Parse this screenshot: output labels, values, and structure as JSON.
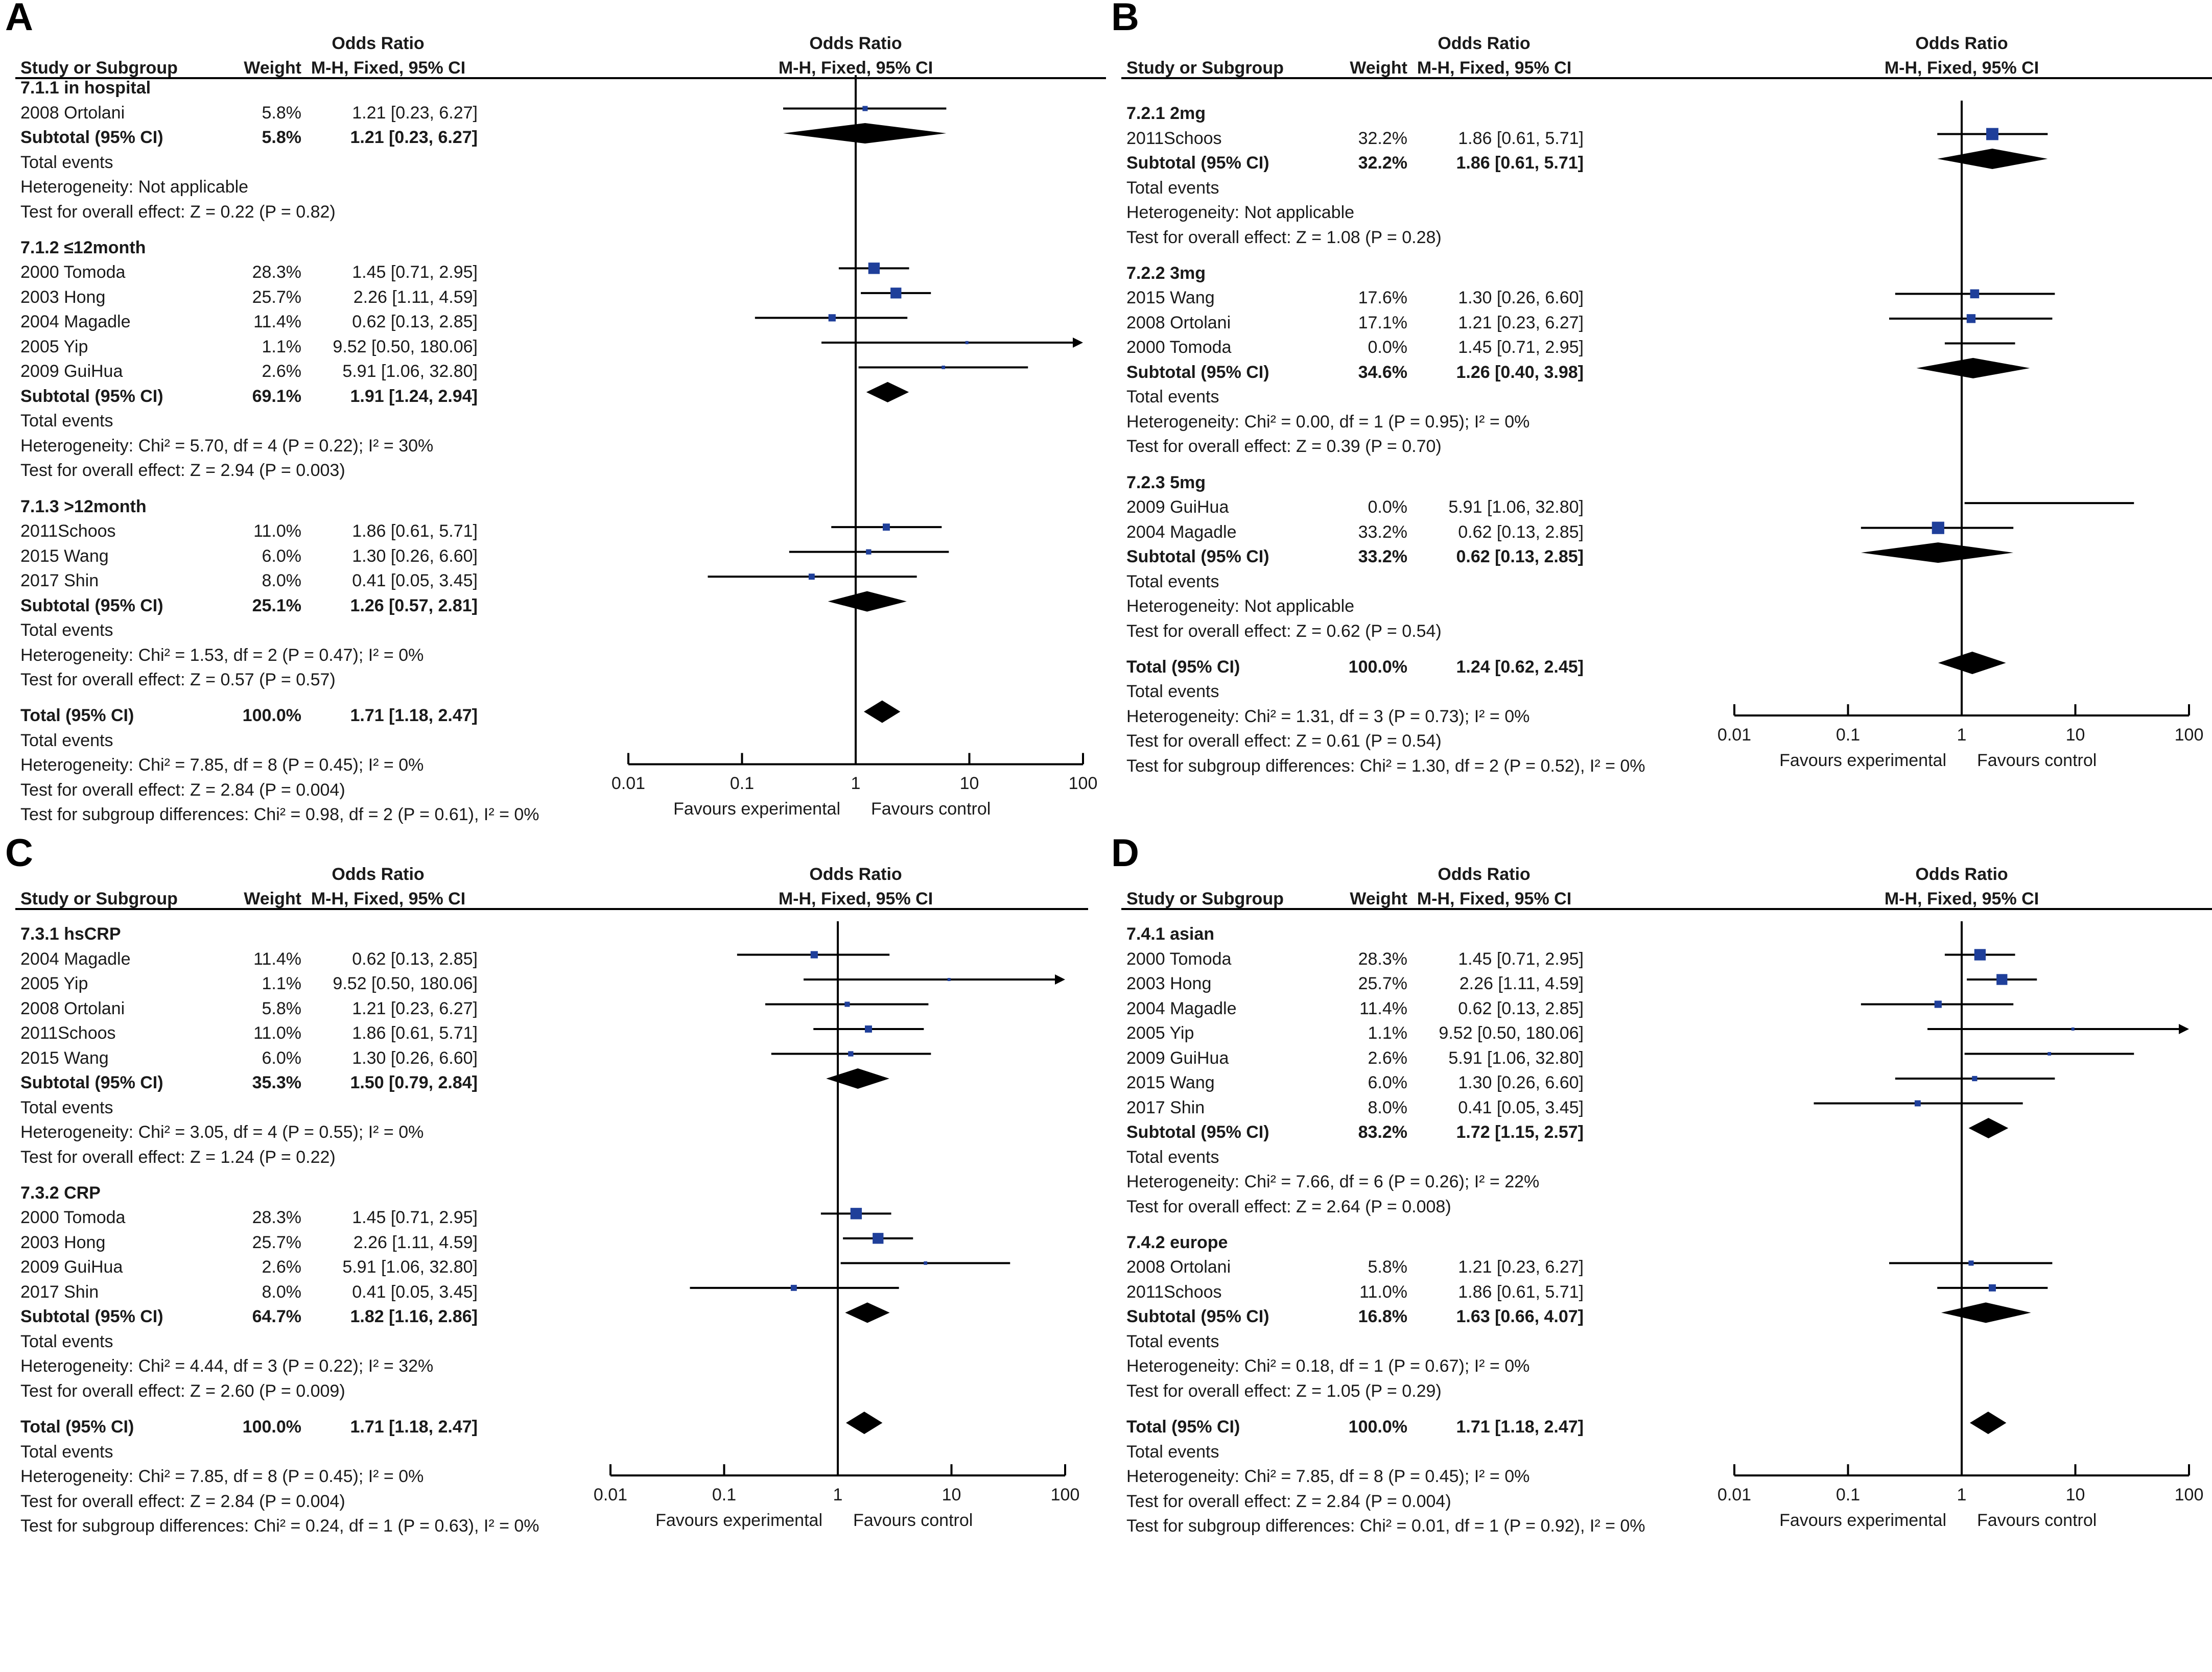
{
  "header": {
    "study_label": "Study or Subgroup",
    "weight_label": "Weight",
    "or_title": "Odds Ratio",
    "or_method": "M-H, Fixed, 95% CI",
    "plot_title": "Odds Ratio",
    "plot_method": "M-H, Fixed, 95% CI"
  },
  "axis": {
    "ticks": [
      "0.01",
      "0.1",
      "1",
      "10",
      "100"
    ],
    "favours_left": "Favours experimental",
    "favours_right": "Favours control"
  },
  "chart_data": [
    {
      "panel": "A",
      "type": "forest",
      "x_scale": "log",
      "xlim": [
        0.01,
        100
      ],
      "rows": [
        {
          "kind": "group",
          "label": "7.1.1 in hospital"
        },
        {
          "kind": "study",
          "label": "2008 Ortolani",
          "weight": "5.8%",
          "ci_text": "1.21 [0.23, 6.27]",
          "or": 1.21,
          "lo": 0.23,
          "hi": 6.27
        },
        {
          "kind": "subtotal",
          "label": "Subtotal (95% CI)",
          "weight": "5.8%",
          "ci_text": "1.21 [0.23, 6.27]",
          "or": 1.21,
          "lo": 0.23,
          "hi": 6.27
        },
        {
          "kind": "text",
          "label": "Total events"
        },
        {
          "kind": "text",
          "label": "Heterogeneity: Not applicable"
        },
        {
          "kind": "text",
          "label": "Test for overall effect: Z = 0.22 (P = 0.82)"
        },
        {
          "kind": "gap"
        },
        {
          "kind": "group",
          "label": "7.1.2 ≤12month"
        },
        {
          "kind": "study",
          "label": "2000 Tomoda",
          "weight": "28.3%",
          "ci_text": "1.45 [0.71, 2.95]",
          "or": 1.45,
          "lo": 0.71,
          "hi": 2.95
        },
        {
          "kind": "study",
          "label": "2003 Hong",
          "weight": "25.7%",
          "ci_text": "2.26 [1.11, 4.59]",
          "or": 2.26,
          "lo": 1.11,
          "hi": 4.59
        },
        {
          "kind": "study",
          "label": "2004 Magadle",
          "weight": "11.4%",
          "ci_text": "0.62 [0.13, 2.85]",
          "or": 0.62,
          "lo": 0.13,
          "hi": 2.85
        },
        {
          "kind": "study",
          "label": "2005 Yip",
          "weight": "1.1%",
          "ci_text": "9.52 [0.50, 180.06]",
          "or": 9.52,
          "lo": 0.5,
          "hi": 180.06
        },
        {
          "kind": "study",
          "label": "2009 GuiHua",
          "weight": "2.6%",
          "ci_text": "5.91 [1.06, 32.80]",
          "or": 5.91,
          "lo": 1.06,
          "hi": 32.8
        },
        {
          "kind": "subtotal",
          "label": "Subtotal (95% CI)",
          "weight": "69.1%",
          "ci_text": "1.91 [1.24, 2.94]",
          "or": 1.91,
          "lo": 1.24,
          "hi": 2.94
        },
        {
          "kind": "text",
          "label": "Total events"
        },
        {
          "kind": "text",
          "label": "Heterogeneity: Chi² = 5.70, df = 4 (P = 0.22); I² = 30%"
        },
        {
          "kind": "text",
          "label": "Test for overall effect: Z = 2.94 (P = 0.003)"
        },
        {
          "kind": "gap"
        },
        {
          "kind": "group",
          "label": "7.1.3 >12month"
        },
        {
          "kind": "study",
          "label": "2011Schoos",
          "weight": "11.0%",
          "ci_text": "1.86 [0.61, 5.71]",
          "or": 1.86,
          "lo": 0.61,
          "hi": 5.71
        },
        {
          "kind": "study",
          "label": "2015 Wang",
          "weight": "6.0%",
          "ci_text": "1.30 [0.26, 6.60]",
          "or": 1.3,
          "lo": 0.26,
          "hi": 6.6
        },
        {
          "kind": "study",
          "label": "2017 Shin",
          "weight": "8.0%",
          "ci_text": "0.41 [0.05, 3.45]",
          "or": 0.41,
          "lo": 0.05,
          "hi": 3.45
        },
        {
          "kind": "subtotal",
          "label": "Subtotal (95% CI)",
          "weight": "25.1%",
          "ci_text": "1.26 [0.57, 2.81]",
          "or": 1.26,
          "lo": 0.57,
          "hi": 2.81
        },
        {
          "kind": "text",
          "label": "Total events"
        },
        {
          "kind": "text",
          "label": "Heterogeneity: Chi² = 1.53, df = 2 (P = 0.47); I² = 0%"
        },
        {
          "kind": "text",
          "label": "Test for overall effect: Z = 0.57 (P = 0.57)"
        },
        {
          "kind": "gap"
        },
        {
          "kind": "total",
          "label": "Total (95% CI)",
          "weight": "100.0%",
          "ci_text": "1.71 [1.18, 2.47]",
          "or": 1.71,
          "lo": 1.18,
          "hi": 2.47
        },
        {
          "kind": "text",
          "label": "Total events"
        },
        {
          "kind": "text",
          "label": "Heterogeneity: Chi² = 7.85, df = 8 (P = 0.45); I² = 0%"
        },
        {
          "kind": "text",
          "label": "Test for overall effect: Z = 2.84 (P = 0.004)"
        },
        {
          "kind": "text",
          "label": "Test for subgroup differences: Chi² = 0.98, df = 2 (P = 0.61), I² = 0%"
        }
      ]
    },
    {
      "panel": "B",
      "type": "forest",
      "x_scale": "log",
      "xlim": [
        0.01,
        100
      ],
      "rows": [
        {
          "kind": "group",
          "label": "7.2.1 2mg"
        },
        {
          "kind": "study",
          "label": "2011Schoos",
          "weight": "32.2%",
          "ci_text": "1.86 [0.61, 5.71]",
          "or": 1.86,
          "lo": 0.61,
          "hi": 5.71
        },
        {
          "kind": "subtotal",
          "label": "Subtotal (95% CI)",
          "weight": "32.2%",
          "ci_text": "1.86 [0.61, 5.71]",
          "or": 1.86,
          "lo": 0.61,
          "hi": 5.71
        },
        {
          "kind": "text",
          "label": "Total events"
        },
        {
          "kind": "text",
          "label": "Heterogeneity: Not applicable"
        },
        {
          "kind": "text",
          "label": "Test for overall effect: Z = 1.08 (P = 0.28)"
        },
        {
          "kind": "gap"
        },
        {
          "kind": "group",
          "label": "7.2.2 3mg"
        },
        {
          "kind": "study",
          "label": "2015 Wang",
          "weight": "17.6%",
          "ci_text": "1.30 [0.26, 6.60]",
          "or": 1.3,
          "lo": 0.26,
          "hi": 6.6
        },
        {
          "kind": "study",
          "label": "2008 Ortolani",
          "weight": "17.1%",
          "ci_text": "1.21 [0.23, 6.27]",
          "or": 1.21,
          "lo": 0.23,
          "hi": 6.27
        },
        {
          "kind": "study",
          "label": "2000 Tomoda",
          "weight": "0.0%",
          "ci_text": "1.45 [0.71, 2.95]",
          "or": 1.45,
          "lo": 0.71,
          "hi": 2.95,
          "nomark": true
        },
        {
          "kind": "subtotal",
          "label": "Subtotal (95% CI)",
          "weight": "34.6%",
          "ci_text": "1.26 [0.40, 3.98]",
          "or": 1.26,
          "lo": 0.4,
          "hi": 3.98
        },
        {
          "kind": "text",
          "label": "Total events"
        },
        {
          "kind": "text",
          "label": "Heterogeneity: Chi² = 0.00, df = 1 (P = 0.95); I² = 0%"
        },
        {
          "kind": "text",
          "label": "Test for overall effect: Z = 0.39 (P = 0.70)"
        },
        {
          "kind": "gap"
        },
        {
          "kind": "group",
          "label": "7.2.3 5mg"
        },
        {
          "kind": "study",
          "label": "2009 GuiHua",
          "weight": "0.0%",
          "ci_text": "5.91 [1.06, 32.80]",
          "or": 5.91,
          "lo": 1.06,
          "hi": 32.8,
          "nomark": true
        },
        {
          "kind": "study",
          "label": "2004 Magadle",
          "weight": "33.2%",
          "ci_text": "0.62 [0.13, 2.85]",
          "or": 0.62,
          "lo": 0.13,
          "hi": 2.85
        },
        {
          "kind": "subtotal",
          "label": "Subtotal (95% CI)",
          "weight": "33.2%",
          "ci_text": "0.62 [0.13, 2.85]",
          "or": 0.62,
          "lo": 0.13,
          "hi": 2.85
        },
        {
          "kind": "text",
          "label": "Total events"
        },
        {
          "kind": "text",
          "label": "Heterogeneity: Not applicable"
        },
        {
          "kind": "text",
          "label": "Test for overall effect: Z = 0.62 (P = 0.54)"
        },
        {
          "kind": "gap"
        },
        {
          "kind": "total",
          "label": "Total (95% CI)",
          "weight": "100.0%",
          "ci_text": "1.24 [0.62, 2.45]",
          "or": 1.24,
          "lo": 0.62,
          "hi": 2.45
        },
        {
          "kind": "text",
          "label": "Total events"
        },
        {
          "kind": "text",
          "label": "Heterogeneity: Chi² = 1.31, df = 3 (P = 0.73); I² = 0%"
        },
        {
          "kind": "text",
          "label": "Test for overall effect: Z = 0.61 (P = 0.54)"
        },
        {
          "kind": "text",
          "label": "Test for subgroup differences: Chi² = 1.30, df = 2 (P = 0.52), I² = 0%"
        }
      ]
    },
    {
      "panel": "C",
      "type": "forest",
      "x_scale": "log",
      "xlim": [
        0.01,
        100
      ],
      "rows": [
        {
          "kind": "group",
          "label": "7.3.1 hsCRP"
        },
        {
          "kind": "study",
          "label": "2004 Magadle",
          "weight": "11.4%",
          "ci_text": "0.62 [0.13, 2.85]",
          "or": 0.62,
          "lo": 0.13,
          "hi": 2.85
        },
        {
          "kind": "study",
          "label": "2005 Yip",
          "weight": "1.1%",
          "ci_text": "9.52 [0.50, 180.06]",
          "or": 9.52,
          "lo": 0.5,
          "hi": 180.06
        },
        {
          "kind": "study",
          "label": "2008 Ortolani",
          "weight": "5.8%",
          "ci_text": "1.21 [0.23, 6.27]",
          "or": 1.21,
          "lo": 0.23,
          "hi": 6.27
        },
        {
          "kind": "study",
          "label": "2011Schoos",
          "weight": "11.0%",
          "ci_text": "1.86 [0.61, 5.71]",
          "or": 1.86,
          "lo": 0.61,
          "hi": 5.71
        },
        {
          "kind": "study",
          "label": "2015 Wang",
          "weight": "6.0%",
          "ci_text": "1.30 [0.26, 6.60]",
          "or": 1.3,
          "lo": 0.26,
          "hi": 6.6
        },
        {
          "kind": "subtotal",
          "label": "Subtotal (95% CI)",
          "weight": "35.3%",
          "ci_text": "1.50 [0.79, 2.84]",
          "or": 1.5,
          "lo": 0.79,
          "hi": 2.84
        },
        {
          "kind": "text",
          "label": "Total events"
        },
        {
          "kind": "text",
          "label": "Heterogeneity: Chi² = 3.05, df = 4 (P = 0.55); I² = 0%"
        },
        {
          "kind": "text",
          "label": "Test for overall effect: Z = 1.24 (P = 0.22)"
        },
        {
          "kind": "gap"
        },
        {
          "kind": "group",
          "label": "7.3.2 CRP"
        },
        {
          "kind": "study",
          "label": "2000 Tomoda",
          "weight": "28.3%",
          "ci_text": "1.45 [0.71, 2.95]",
          "or": 1.45,
          "lo": 0.71,
          "hi": 2.95
        },
        {
          "kind": "study",
          "label": "2003 Hong",
          "weight": "25.7%",
          "ci_text": "2.26 [1.11, 4.59]",
          "or": 2.26,
          "lo": 1.11,
          "hi": 4.59
        },
        {
          "kind": "study",
          "label": "2009 GuiHua",
          "weight": "2.6%",
          "ci_text": "5.91 [1.06, 32.80]",
          "or": 5.91,
          "lo": 1.06,
          "hi": 32.8
        },
        {
          "kind": "study",
          "label": "2017 Shin",
          "weight": "8.0%",
          "ci_text": "0.41 [0.05, 3.45]",
          "or": 0.41,
          "lo": 0.05,
          "hi": 3.45
        },
        {
          "kind": "subtotal",
          "label": "Subtotal (95% CI)",
          "weight": "64.7%",
          "ci_text": "1.82 [1.16, 2.86]",
          "or": 1.82,
          "lo": 1.16,
          "hi": 2.86
        },
        {
          "kind": "text",
          "label": "Total events"
        },
        {
          "kind": "text",
          "label": "Heterogeneity: Chi² = 4.44, df = 3 (P = 0.22); I² = 32%"
        },
        {
          "kind": "text",
          "label": "Test for overall effect: Z = 2.60 (P = 0.009)"
        },
        {
          "kind": "gap"
        },
        {
          "kind": "total",
          "label": "Total (95% CI)",
          "weight": "100.0%",
          "ci_text": "1.71 [1.18, 2.47]",
          "or": 1.71,
          "lo": 1.18,
          "hi": 2.47
        },
        {
          "kind": "text",
          "label": "Total events"
        },
        {
          "kind": "text",
          "label": "Heterogeneity: Chi² = 7.85, df = 8 (P = 0.45); I² = 0%"
        },
        {
          "kind": "text",
          "label": "Test for overall effect: Z = 2.84 (P = 0.004)"
        },
        {
          "kind": "text",
          "label": "Test for subgroup differences: Chi² = 0.24, df = 1 (P = 0.63), I² = 0%"
        }
      ]
    },
    {
      "panel": "D",
      "type": "forest",
      "x_scale": "log",
      "xlim": [
        0.01,
        100
      ],
      "rows": [
        {
          "kind": "group",
          "label": "7.4.1 asian"
        },
        {
          "kind": "study",
          "label": "2000 Tomoda",
          "weight": "28.3%",
          "ci_text": "1.45 [0.71, 2.95]",
          "or": 1.45,
          "lo": 0.71,
          "hi": 2.95
        },
        {
          "kind": "study",
          "label": "2003 Hong",
          "weight": "25.7%",
          "ci_text": "2.26 [1.11, 4.59]",
          "or": 2.26,
          "lo": 1.11,
          "hi": 4.59
        },
        {
          "kind": "study",
          "label": "2004 Magadle",
          "weight": "11.4%",
          "ci_text": "0.62 [0.13, 2.85]",
          "or": 0.62,
          "lo": 0.13,
          "hi": 2.85
        },
        {
          "kind": "study",
          "label": "2005 Yip",
          "weight": "1.1%",
          "ci_text": "9.52 [0.50, 180.06]",
          "or": 9.52,
          "lo": 0.5,
          "hi": 180.06
        },
        {
          "kind": "study",
          "label": "2009 GuiHua",
          "weight": "2.6%",
          "ci_text": "5.91 [1.06, 32.80]",
          "or": 5.91,
          "lo": 1.06,
          "hi": 32.8
        },
        {
          "kind": "study",
          "label": "2015 Wang",
          "weight": "6.0%",
          "ci_text": "1.30 [0.26, 6.60]",
          "or": 1.3,
          "lo": 0.26,
          "hi": 6.6
        },
        {
          "kind": "study",
          "label": "2017 Shin",
          "weight": "8.0%",
          "ci_text": "0.41 [0.05, 3.45]",
          "or": 0.41,
          "lo": 0.05,
          "hi": 3.45
        },
        {
          "kind": "subtotal",
          "label": "Subtotal (95% CI)",
          "weight": "83.2%",
          "ci_text": "1.72 [1.15, 2.57]",
          "or": 1.72,
          "lo": 1.15,
          "hi": 2.57
        },
        {
          "kind": "text",
          "label": "Total events"
        },
        {
          "kind": "text",
          "label": "Heterogeneity: Chi² = 7.66, df = 6 (P = 0.26); I² = 22%"
        },
        {
          "kind": "text",
          "label": "Test for overall effect: Z = 2.64 (P = 0.008)"
        },
        {
          "kind": "gap"
        },
        {
          "kind": "group",
          "label": "7.4.2 europe"
        },
        {
          "kind": "study",
          "label": "2008 Ortolani",
          "weight": "5.8%",
          "ci_text": "1.21 [0.23, 6.27]",
          "or": 1.21,
          "lo": 0.23,
          "hi": 6.27
        },
        {
          "kind": "study",
          "label": "2011Schoos",
          "weight": "11.0%",
          "ci_text": "1.86 [0.61, 5.71]",
          "or": 1.86,
          "lo": 0.61,
          "hi": 5.71
        },
        {
          "kind": "subtotal",
          "label": "Subtotal (95% CI)",
          "weight": "16.8%",
          "ci_text": "1.63 [0.66, 4.07]",
          "or": 1.63,
          "lo": 0.66,
          "hi": 4.07
        },
        {
          "kind": "text",
          "label": "Total events"
        },
        {
          "kind": "text",
          "label": "Heterogeneity: Chi² = 0.18, df = 1 (P = 0.67); I² = 0%"
        },
        {
          "kind": "text",
          "label": "Test for overall effect: Z = 1.05 (P = 0.29)"
        },
        {
          "kind": "gap"
        },
        {
          "kind": "total",
          "label": "Total (95% CI)",
          "weight": "100.0%",
          "ci_text": "1.71 [1.18, 2.47]",
          "or": 1.71,
          "lo": 1.18,
          "hi": 2.47
        },
        {
          "kind": "text",
          "label": "Total events"
        },
        {
          "kind": "text",
          "label": "Heterogeneity: Chi² = 7.85, df = 8 (P = 0.45); I² = 0%"
        },
        {
          "kind": "text",
          "label": "Test for overall effect: Z = 2.84 (P = 0.004)"
        },
        {
          "kind": "text",
          "label": "Test for subgroup differences: Chi² = 0.01, df = 1 (P = 0.92), I² = 0%"
        }
      ]
    }
  ]
}
